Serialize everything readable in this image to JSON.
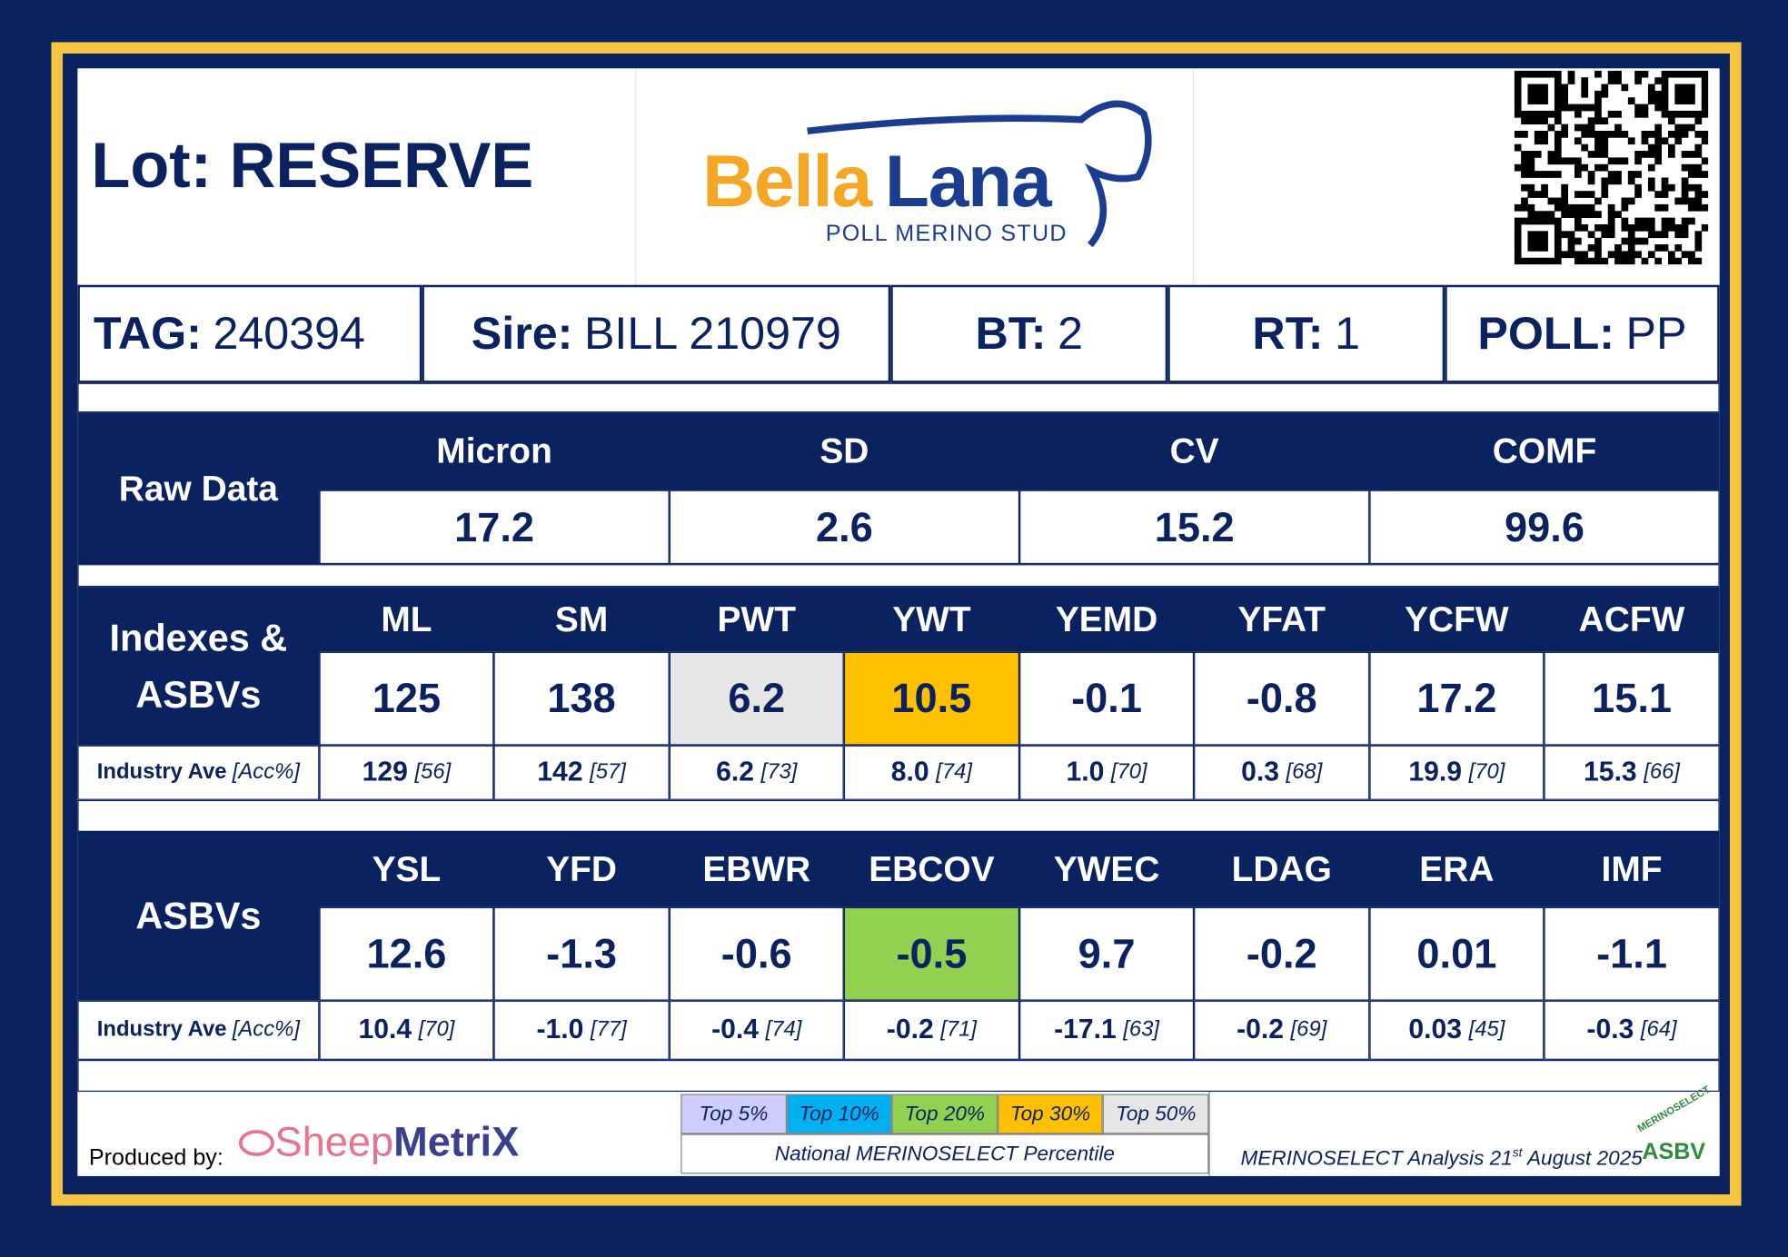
{
  "header": {
    "lot_label": "Lot:",
    "lot": "RESERVE",
    "brand_first": "Bella",
    "brand_second": "Lana",
    "brand_tagline": "POLL MERINO STUD"
  },
  "info": [
    {
      "label": "TAG:",
      "value": "240394"
    },
    {
      "label": "Sire:",
      "value": "BILL 210979"
    },
    {
      "label": "BT:",
      "value": "2"
    },
    {
      "label": "RT:",
      "value": "1"
    },
    {
      "label": "POLL:",
      "value": "PP"
    }
  ],
  "raw_data": {
    "title": "Raw Data",
    "columns": [
      "Micron",
      "SD",
      "CV",
      "COMF"
    ],
    "values": [
      "17.2",
      "2.6",
      "15.2",
      "99.6"
    ]
  },
  "indexes": {
    "title": "Indexes & ASBVs",
    "columns": [
      "ML",
      "SM",
      "PWT",
      "YWT",
      "YEMD",
      "YFAT",
      "YCFW",
      "ACFW"
    ],
    "values": [
      "125",
      "138",
      "6.2",
      "10.5",
      "-0.1",
      "-0.8",
      "17.2",
      "15.1"
    ],
    "cell_colors": [
      "#ffffff",
      "#ffffff",
      "#e6e6e6",
      "#ffc000",
      "#ffffff",
      "#ffffff",
      "#ffffff",
      "#ffffff"
    ],
    "industry_label": "Industry Ave",
    "acc_label": "[Acc%]",
    "averages": [
      {
        "value": "129",
        "acc": "[56]"
      },
      {
        "value": "142",
        "acc": "[57]"
      },
      {
        "value": "6.2",
        "acc": "[73]"
      },
      {
        "value": "8.0",
        "acc": "[74]"
      },
      {
        "value": "1.0",
        "acc": "[70]"
      },
      {
        "value": "0.3",
        "acc": "[68]"
      },
      {
        "value": "19.9",
        "acc": "[70]"
      },
      {
        "value": "15.3",
        "acc": "[66]"
      }
    ]
  },
  "asbvs": {
    "title": "ASBVs",
    "columns": [
      "YSL",
      "YFD",
      "EBWR",
      "EBCOV",
      "YWEC",
      "LDAG",
      "ERA",
      "IMF"
    ],
    "values": [
      "12.6",
      "-1.3",
      "-0.6",
      "-0.5",
      "9.7",
      "-0.2",
      "0.01",
      "-1.1"
    ],
    "cell_colors": [
      "#ffffff",
      "#ffffff",
      "#ffffff",
      "#92d050",
      "#ffffff",
      "#ffffff",
      "#ffffff",
      "#ffffff"
    ],
    "industry_label": "Industry Ave",
    "acc_label": "[Acc%]",
    "averages": [
      {
        "value": "10.4",
        "acc": "[70]"
      },
      {
        "value": "-1.0",
        "acc": "[77]"
      },
      {
        "value": "-0.4",
        "acc": "[74]"
      },
      {
        "value": "-0.2",
        "acc": "[71]"
      },
      {
        "value": "-17.1",
        "acc": "[63]"
      },
      {
        "value": "-0.2",
        "acc": "[69]"
      },
      {
        "value": "0.03",
        "acc": "[45]"
      },
      {
        "value": "-0.3",
        "acc": "[64]"
      }
    ]
  },
  "legend": {
    "items": [
      {
        "label": "Top 5%",
        "color": "#ccccff"
      },
      {
        "label": "Top 10%",
        "color": "#00b0f0"
      },
      {
        "label": "Top 20%",
        "color": "#92d050"
      },
      {
        "label": "Top 30%",
        "color": "#ffc000"
      },
      {
        "label": "Top 50%",
        "color": "#e6e6e6"
      }
    ],
    "caption": "National MERINOSELECT Percentile"
  },
  "footer": {
    "produced_by": "Produced by:",
    "logo_first": "Sheep",
    "logo_second": "MetriX",
    "analysis_main": "MERINOSELECT Analysis 21",
    "analysis_sup": "st",
    "analysis_tail": " August 2025",
    "badge_top": "MERINOSELECT",
    "badge_bottom": "ASBV"
  }
}
